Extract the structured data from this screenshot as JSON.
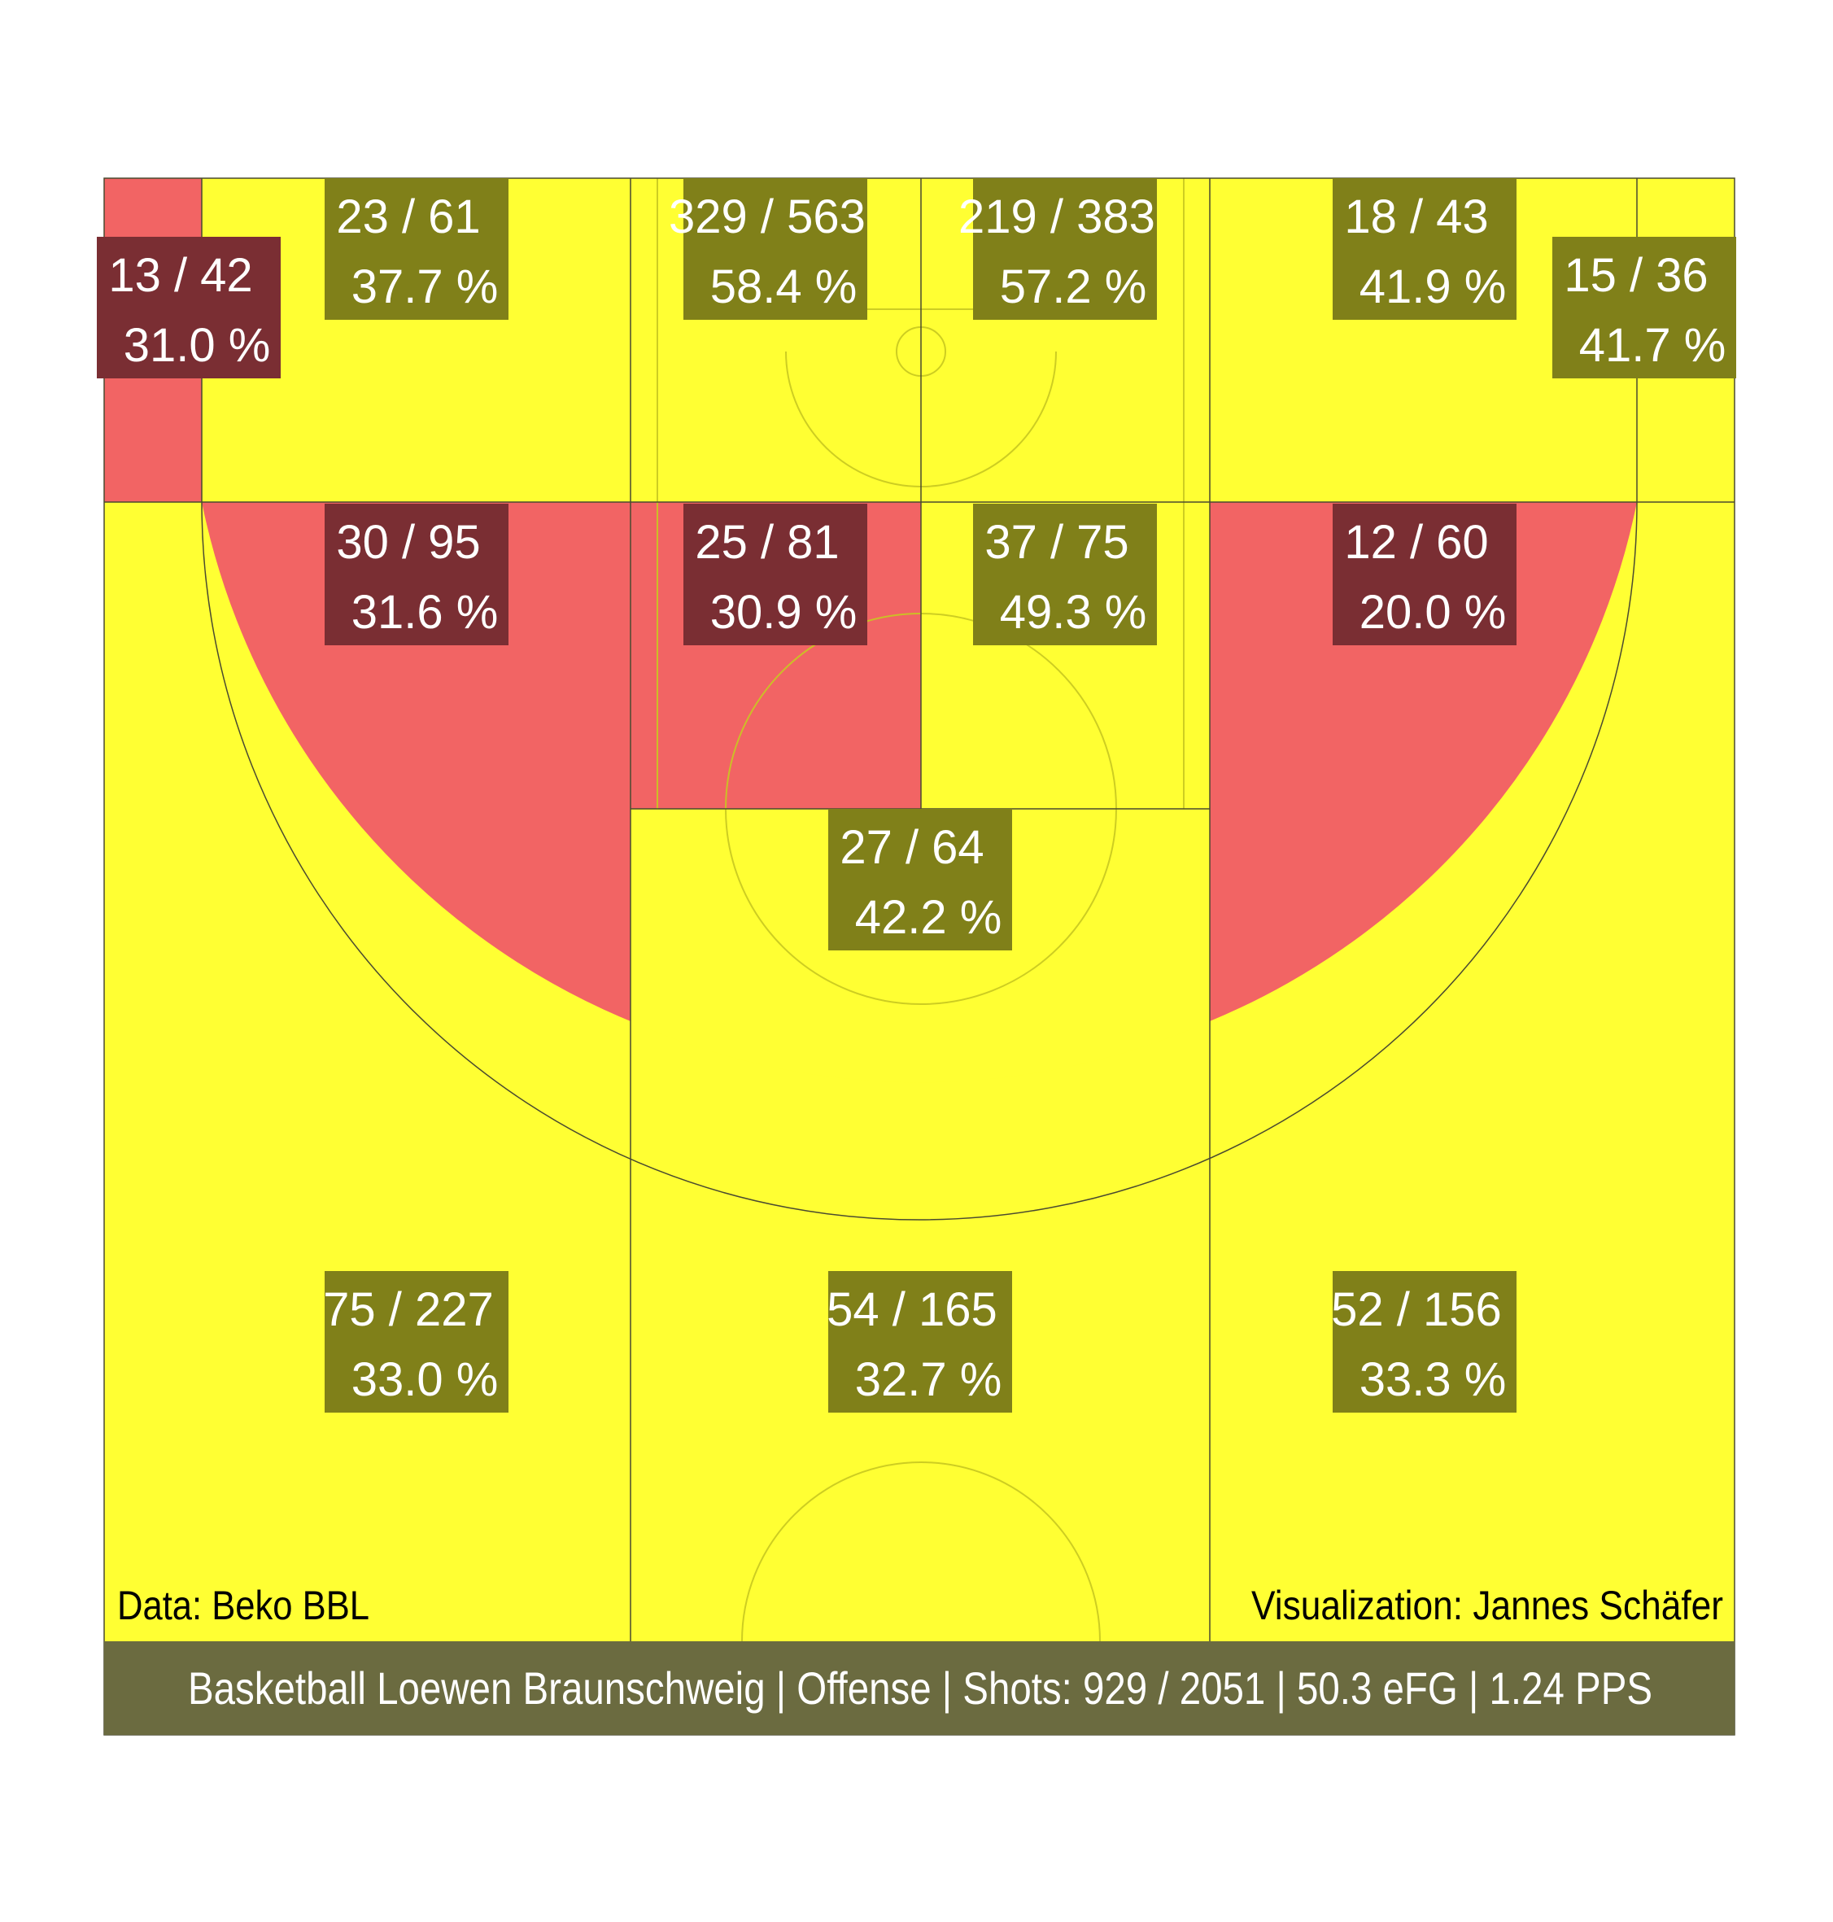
{
  "chart_data": {
    "type": "heatmap",
    "zones": [
      {
        "id": "left-corner-three",
        "made": 13,
        "attempts": 42,
        "pct": "31.0 %",
        "color": "red"
      },
      {
        "id": "left-baseline-mid",
        "made": 23,
        "attempts": 61,
        "pct": "37.7 %",
        "color": "yellow"
      },
      {
        "id": "paint-left",
        "made": 329,
        "attempts": 563,
        "pct": "58.4 %",
        "color": "yellow"
      },
      {
        "id": "paint-right",
        "made": 219,
        "attempts": 383,
        "pct": "57.2 %",
        "color": "yellow"
      },
      {
        "id": "right-baseline-mid",
        "made": 18,
        "attempts": 43,
        "pct": "41.9 %",
        "color": "yellow"
      },
      {
        "id": "right-corner-three",
        "made": 15,
        "attempts": 36,
        "pct": "41.7 %",
        "color": "yellow"
      },
      {
        "id": "left-wing-mid",
        "made": 30,
        "attempts": 95,
        "pct": "31.6 %",
        "color": "red"
      },
      {
        "id": "left-elbow-mid",
        "made": 25,
        "attempts": 81,
        "pct": "30.9 %",
        "color": "red"
      },
      {
        "id": "right-elbow-mid",
        "made": 37,
        "attempts": 75,
        "pct": "49.3 %",
        "color": "yellow"
      },
      {
        "id": "right-wing-mid",
        "made": 12,
        "attempts": 60,
        "pct": "20.0 %",
        "color": "red"
      },
      {
        "id": "top-key-mid",
        "made": 27,
        "attempts": 64,
        "pct": "42.2 %",
        "color": "yellow"
      },
      {
        "id": "left-wing-three",
        "made": 75,
        "attempts": 227,
        "pct": "33.0 %",
        "color": "yellow"
      },
      {
        "id": "top-three",
        "made": 54,
        "attempts": 165,
        "pct": "32.7 %",
        "color": "yellow"
      },
      {
        "id": "right-wing-three",
        "made": 52,
        "attempts": 156,
        "pct": "33.3 %",
        "color": "yellow"
      }
    ]
  },
  "credits": {
    "data_source": "Data: Beko BBL",
    "author": "Visualization: Jannes Schäfer"
  },
  "footer": {
    "summary": "Basketball Loewen Braunschweig | Offense | Shots: 929 / 2051 | 50.3 eFG | 1.24 PPS"
  },
  "colors": {
    "yellow": "#FFFF33",
    "red": "#F26464",
    "label_good": "#808019",
    "label_bad": "#7A2E33",
    "footer_bg": "#6B6B40"
  }
}
